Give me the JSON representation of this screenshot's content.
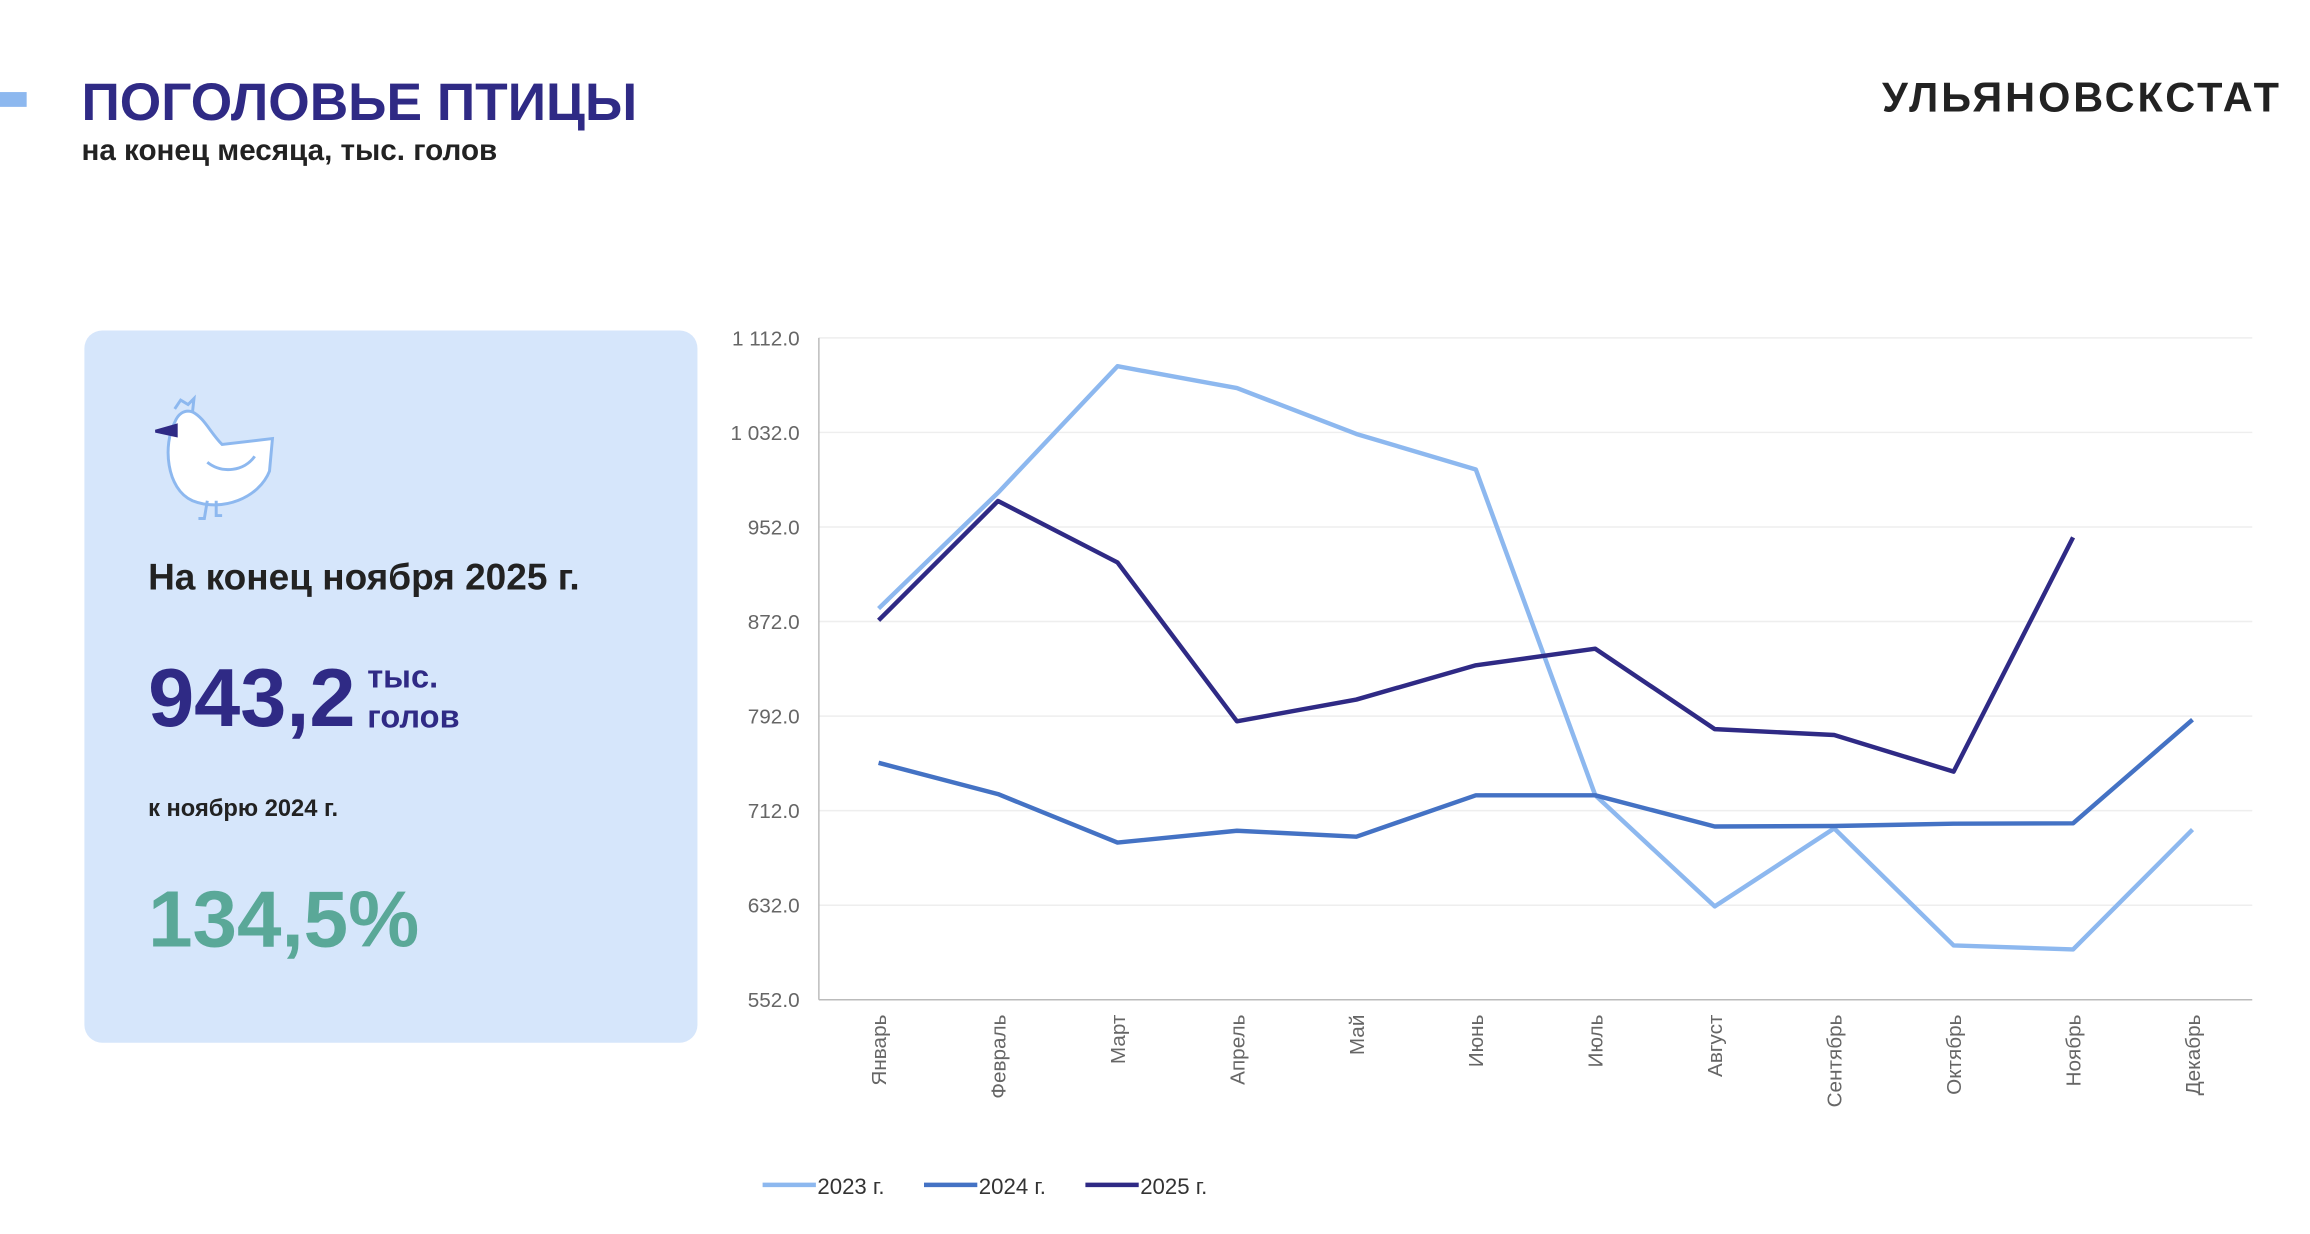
{
  "header": {
    "title": "ПОГОЛОВЬЕ ПТИЦЫ",
    "subtitle": "на конец месяца, тыс. голов",
    "brand": "УЛЬЯНОВСКСТАТ"
  },
  "card": {
    "heading": "На конец ноября 2025 г.",
    "value": "943,2",
    "unit_line1": "тыс.",
    "unit_line2": "голов",
    "compare_label": "к ноябрю 2024 г.",
    "compare_value": "134,5%"
  },
  "chart_data": {
    "type": "line",
    "categories": [
      "Январь",
      "Февраль",
      "Март",
      "Апрель",
      "Май",
      "Июнь",
      "Июль",
      "Август",
      "Сентябрь",
      "Октябрь",
      "Ноябрь",
      "Декабрь"
    ],
    "series": [
      {
        "name": "2023 г.",
        "color": "#8db8ef",
        "values": [
          883,
          981,
          1088,
          1069.5,
          1030.7,
          1000.6,
          725,
          631,
          697,
          598,
          594.6,
          696
        ]
      },
      {
        "name": "2024 г.",
        "color": "#4472c4",
        "values": [
          752.5,
          726,
          685,
          695,
          690,
          725,
          725,
          698.6,
          699,
          701,
          701.3,
          789
        ]
      },
      {
        "name": "2025 г.",
        "color": "#2f2a85",
        "values": [
          873,
          974,
          922,
          787.6,
          806,
          835,
          849,
          781,
          776,
          745,
          943.2,
          null
        ]
      }
    ],
    "ylim": [
      552,
      1112
    ],
    "yticks": [
      {
        "value": 552,
        "label": "552.0"
      },
      {
        "value": 632,
        "label": "632.0"
      },
      {
        "value": 712,
        "label": "712.0"
      },
      {
        "value": 792,
        "label": "792.0"
      },
      {
        "value": 872,
        "label": "872.0"
      },
      {
        "value": 952,
        "label": "952.0"
      },
      {
        "value": 1032,
        "label": "1 032.0"
      },
      {
        "value": 1112,
        "label": "1 112.0"
      }
    ],
    "grid": true,
    "legend": "bottom"
  }
}
